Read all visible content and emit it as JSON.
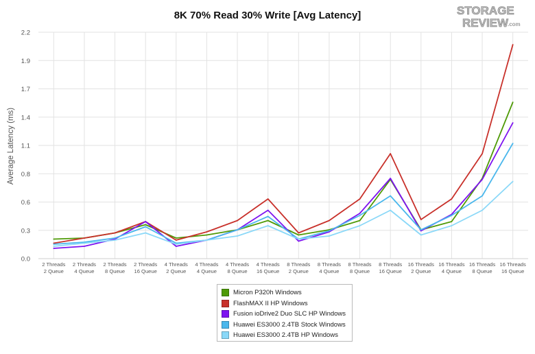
{
  "chart_data": {
    "type": "line",
    "title": "8K 70% Read 30% Write [Avg Latency]",
    "ylabel": "Average Latency (ms)",
    "xlabel": "",
    "ylim": [
      0,
      2.2
    ],
    "y_ticks": [
      "0.0",
      "0.3",
      "0.6",
      "0.8",
      "1.1",
      "1.4",
      "1.7",
      "1.9",
      "2.2"
    ],
    "y_tick_values": [
      0.0,
      0.275,
      0.55,
      0.825,
      1.1,
      1.375,
      1.65,
      1.925,
      2.2
    ],
    "grid": true,
    "legend_position": "bottom",
    "categories": [
      [
        "2 Threads",
        "2 Queue"
      ],
      [
        "2 Threads",
        "4 Queue"
      ],
      [
        "2 Threads",
        "8 Queue"
      ],
      [
        "2 Threads",
        "16 Queue"
      ],
      [
        "4 Threads",
        "2 Queue"
      ],
      [
        "4 Threads",
        "4 Queue"
      ],
      [
        "4 Threads",
        "8 Queue"
      ],
      [
        "4 Threads",
        "16 Queue"
      ],
      [
        "8 Threads",
        "2 Queue"
      ],
      [
        "8 Threads",
        "4 Queue"
      ],
      [
        "8 Threads",
        "8 Queue"
      ],
      [
        "8 Threads",
        "16 Queue"
      ],
      [
        "16 Threads",
        "2 Queue"
      ],
      [
        "16 Threads",
        "4 Queue"
      ],
      [
        "16 Threads",
        "8 Queue"
      ],
      [
        "16 Threads",
        "16 Queue"
      ]
    ],
    "series": [
      {
        "name": "Micron P320h Windows",
        "color": "#4e9a06",
        "values": [
          0.19,
          0.2,
          0.25,
          0.33,
          0.2,
          0.23,
          0.28,
          0.37,
          0.23,
          0.28,
          0.37,
          0.77,
          0.28,
          0.36,
          0.78,
          1.52
        ]
      },
      {
        "name": "FlashMAX II HP Windows",
        "color": "#c8302a",
        "values": [
          0.15,
          0.2,
          0.25,
          0.36,
          0.18,
          0.26,
          0.37,
          0.58,
          0.25,
          0.37,
          0.58,
          1.02,
          0.38,
          0.58,
          1.02,
          2.08
        ]
      },
      {
        "name": "Fusion ioDrive2 Duo SLC HP Windows",
        "color": "#7d12f0",
        "values": [
          0.1,
          0.12,
          0.19,
          0.36,
          0.12,
          0.18,
          0.28,
          0.47,
          0.17,
          0.26,
          0.44,
          0.78,
          0.27,
          0.43,
          0.77,
          1.32
        ]
      },
      {
        "name": "Huawei ES3000 2.4TB Stock Windows",
        "color": "#4ab7ec",
        "values": [
          0.14,
          0.16,
          0.2,
          0.31,
          0.15,
          0.18,
          0.28,
          0.41,
          0.19,
          0.27,
          0.42,
          0.61,
          0.28,
          0.42,
          0.61,
          1.12
        ]
      },
      {
        "name": "Huawei ES3000 2.4TB HP Windows",
        "color": "#8ad8f8",
        "values": [
          0.12,
          0.15,
          0.18,
          0.25,
          0.14,
          0.18,
          0.22,
          0.32,
          0.19,
          0.22,
          0.32,
          0.47,
          0.23,
          0.32,
          0.47,
          0.75
        ]
      }
    ]
  },
  "logo": {
    "line1": "STORAGE",
    "line2": "REVIEW",
    "suffix": ".com"
  }
}
